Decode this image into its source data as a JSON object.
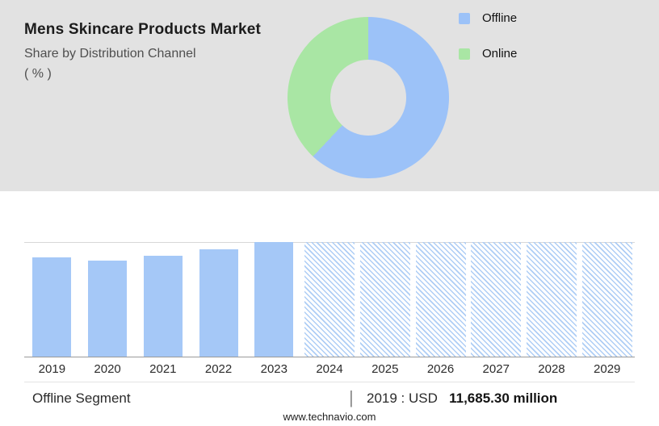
{
  "header": {
    "title": "Mens Skincare Products Market",
    "subtitle": "Share by Distribution Channel",
    "unit_label": "( % )"
  },
  "colors": {
    "offline": "#9cc2f8",
    "online": "#a9e6a4",
    "bar_solid": "#a5c8f7",
    "forecast_hatch": "#aecdf5",
    "panel_bg": "#e2e2e2"
  },
  "chart_data": [
    {
      "type": "pie",
      "donut": true,
      "title": "Share by Distribution Channel ( % )",
      "labels": [
        "Offline",
        "Online"
      ],
      "values": [
        62,
        38
      ],
      "colors": [
        "#9cc2f8",
        "#a9e6a4"
      ],
      "legend_position": "right"
    },
    {
      "type": "bar",
      "title": "Offline Segment market size by year (relative index)",
      "categories": [
        "2019",
        "2020",
        "2021",
        "2022",
        "2023",
        "2024",
        "2025",
        "2026",
        "2027",
        "2028",
        "2029"
      ],
      "values": [
        87,
        84,
        88,
        94,
        100,
        null,
        null,
        null,
        null,
        null,
        null
      ],
      "forecast_years": [
        "2024",
        "2025",
        "2026",
        "2027",
        "2028",
        "2029"
      ],
      "forecast_style": "hatched-full-height-placeholder",
      "ylim": [
        0,
        100
      ],
      "grid": "top and bottom rule lines only",
      "annotation": "2019 : USD 11,685.30 million"
    }
  ],
  "bottom": {
    "segment_label": "Offline Segment",
    "separator": "|",
    "value_prefix": "2019 : USD",
    "value_bold": "11,685.30 million"
  },
  "footer": {
    "url": "www.technavio.com"
  }
}
